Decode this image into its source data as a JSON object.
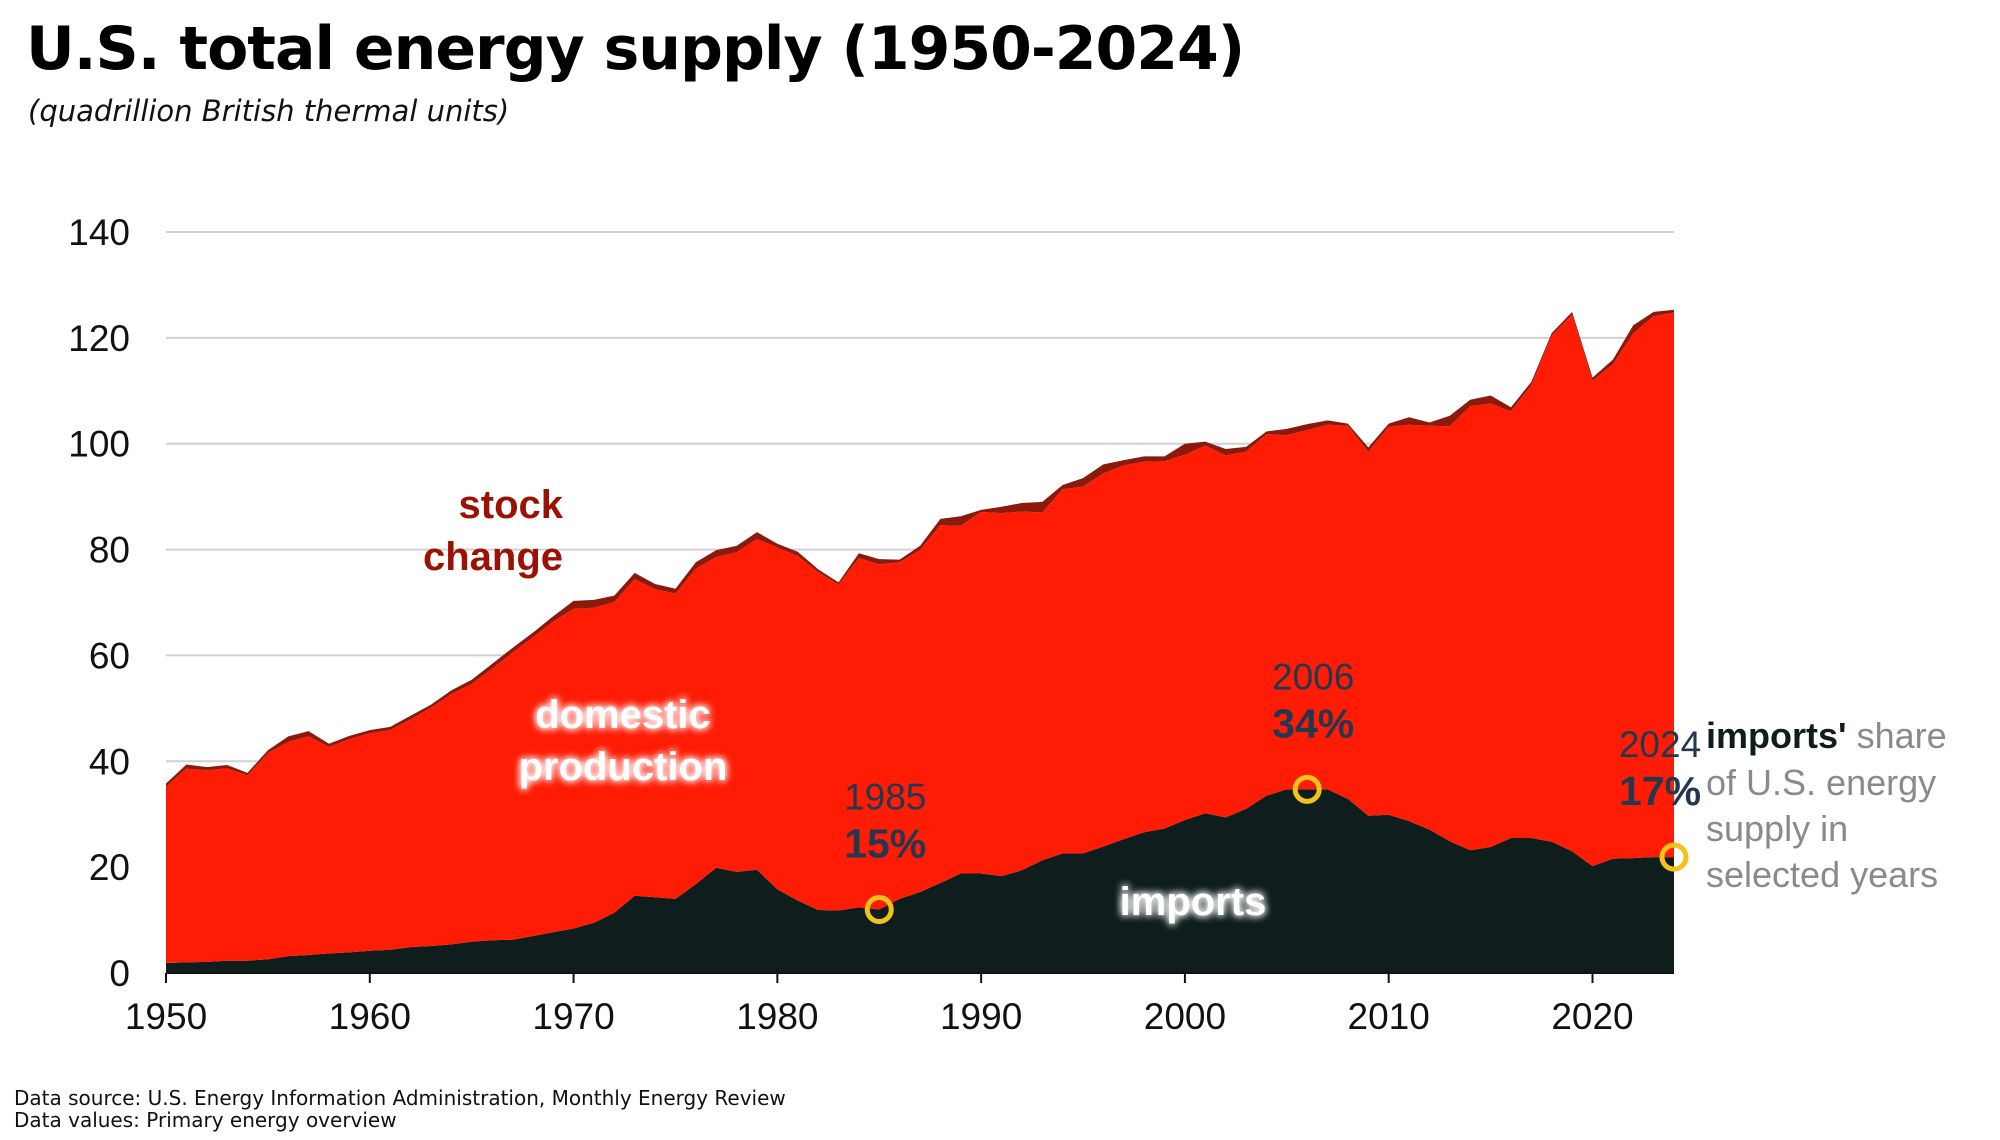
{
  "title": "U.S. total energy supply (1950-2024)",
  "subtitle": "(quadrillion British thermal units)",
  "source_lines": [
    "Data source: U.S. Energy Information Administration, Monthly Energy Review",
    "Data values: Primary energy overview"
  ],
  "colors": {
    "imports": "#0f1e1d",
    "domestic_production": "#ff1c05",
    "stock_change": "#8b1a0c",
    "label_stock": "#9b1205",
    "callout_marker": "#f2c21b",
    "callout_text": "#23384f",
    "legend_gray": "#8a8a8a",
    "grid": "#d0d0d0"
  },
  "chart_data": {
    "type": "area",
    "title": "U.S. total energy supply (1950-2024)",
    "subtitle": "(quadrillion British thermal units)",
    "xlabel": "",
    "ylabel": "",
    "xlim": [
      1950,
      2024
    ],
    "ylim": [
      0,
      140
    ],
    "x_ticks": [
      1950,
      1960,
      1970,
      1980,
      1990,
      2000,
      2010,
      2020
    ],
    "y_ticks": [
      0,
      20,
      40,
      60,
      80,
      100,
      120,
      140
    ],
    "grid": true,
    "stacking": "stacked",
    "x": [
      1950,
      1951,
      1952,
      1953,
      1954,
      1955,
      1956,
      1957,
      1958,
      1959,
      1960,
      1961,
      1962,
      1963,
      1964,
      1965,
      1966,
      1967,
      1968,
      1969,
      1970,
      1971,
      1972,
      1973,
      1974,
      1975,
      1976,
      1977,
      1978,
      1979,
      1980,
      1981,
      1982,
      1983,
      1984,
      1985,
      1986,
      1987,
      1988,
      1989,
      1990,
      1991,
      1992,
      1993,
      1994,
      1995,
      1996,
      1997,
      1998,
      1999,
      2000,
      2001,
      2002,
      2003,
      2004,
      2005,
      2006,
      2007,
      2008,
      2009,
      2010,
      2011,
      2012,
      2013,
      2014,
      2015,
      2016,
      2017,
      2018,
      2019,
      2020,
      2021,
      2022,
      2023,
      2024
    ],
    "series": [
      {
        "name": "imports",
        "label_lines": [
          "imports"
        ],
        "values": [
          1.9,
          2.0,
          2.1,
          2.3,
          2.3,
          2.6,
          3.2,
          3.4,
          3.7,
          3.9,
          4.2,
          4.4,
          4.9,
          5.1,
          5.4,
          5.9,
          6.2,
          6.3,
          7.0,
          7.7,
          8.4,
          9.5,
          11.4,
          14.6,
          14.3,
          14.0,
          16.8,
          19.9,
          19.1,
          19.5,
          15.8,
          13.7,
          11.9,
          11.8,
          12.4,
          12.0,
          14.0,
          15.3,
          17.0,
          18.8,
          18.8,
          18.3,
          19.4,
          21.3,
          22.6,
          22.6,
          23.9,
          25.3,
          26.6,
          27.3,
          28.9,
          30.2,
          29.4,
          31.0,
          33.5,
          34.7,
          34.7,
          34.7,
          32.9,
          29.7,
          29.9,
          28.7,
          27.1,
          24.9,
          23.2,
          23.8,
          25.5,
          25.5,
          24.8,
          23.0,
          20.2,
          21.6,
          21.7,
          21.9,
          21.9
        ]
      },
      {
        "name": "domestic production",
        "label_lines": [
          "domestic",
          "production"
        ],
        "values": [
          33.3,
          36.6,
          36.2,
          36.4,
          35.0,
          38.9,
          40.5,
          41.3,
          39.0,
          40.3,
          41.1,
          41.5,
          43.0,
          45.0,
          47.3,
          48.7,
          51.3,
          54.2,
          56.4,
          58.7,
          60.4,
          59.5,
          58.7,
          59.8,
          58.2,
          57.7,
          59.6,
          58.7,
          60.4,
          62.5,
          64.6,
          65.1,
          63.8,
          61.6,
          66.0,
          65.2,
          63.6,
          64.6,
          67.6,
          65.7,
          68.3,
          68.6,
          67.8,
          65.7,
          68.8,
          69.3,
          70.5,
          70.6,
          70.0,
          69.4,
          69.0,
          69.4,
          68.4,
          67.5,
          68.3,
          66.9,
          67.9,
          68.9,
          70.5,
          68.8,
          73.3,
          74.9,
          76.3,
          78.4,
          83.9,
          83.8,
          80.6,
          85.6,
          95.6,
          101.4,
          91.7,
          93.4,
          99.1,
          102.2,
          102.9
        ]
      },
      {
        "name": "stock change",
        "label_lines": [
          "stock",
          "change"
        ],
        "values": [
          0.6,
          0.8,
          0.6,
          0.6,
          0.5,
          0.6,
          1.0,
          1.0,
          0.6,
          0.6,
          0.6,
          0.6,
          0.7,
          0.6,
          0.7,
          0.8,
          0.9,
          0.9,
          0.9,
          1.0,
          1.5,
          1.5,
          1.2,
          1.2,
          1.0,
          0.9,
          1.2,
          1.3,
          1.2,
          1.3,
          0.7,
          0.8,
          0.6,
          0.4,
          0.9,
          1.0,
          0.5,
          0.8,
          1.2,
          1.8,
          0.4,
          1.2,
          1.6,
          2.0,
          0.8,
          1.6,
          1.7,
          1.0,
          1.0,
          0.9,
          2.1,
          0.8,
          1.2,
          0.9,
          0.5,
          1.2,
          1.1,
          0.8,
          0.4,
          0.8,
          0.6,
          1.4,
          0.6,
          2.0,
          1.2,
          1.5,
          0.8,
          0.6,
          0.5,
          0.5,
          0.6,
          0.9,
          1.6,
          0.8,
          0.5
        ]
      }
    ],
    "annotations": [
      {
        "year": 1985,
        "year_label": "1985",
        "share": "15%",
        "value": 12.0
      },
      {
        "year": 2006,
        "year_label": "2006",
        "share": "34%",
        "value": 34.7
      },
      {
        "year": 2024,
        "year_label": "2024",
        "share": "17%",
        "value": 21.9
      }
    ],
    "side_note": {
      "bold": "imports'",
      "rest": " share",
      "lines": [
        "of U.S. energy",
        "supply in",
        "selected years"
      ]
    }
  }
}
